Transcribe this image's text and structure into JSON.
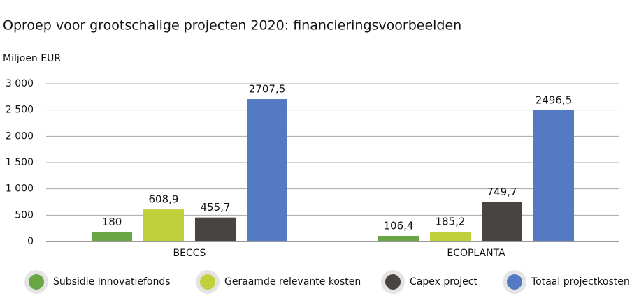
{
  "chart_data": {
    "type": "bar",
    "title": "Oproep voor grootschalige projecten 2020: financieringsvoorbeelden",
    "y_label": "Miljoen EUR",
    "categories": [
      "BECCS",
      "ECOPLANTA"
    ],
    "series": [
      {
        "name": "Subsidie Innovatiefonds",
        "color": "#6aa543",
        "values": [
          180,
          106.4
        ],
        "value_labels": [
          "180",
          "106,4"
        ]
      },
      {
        "name": "Geraamde relevante kosten",
        "color": "#c0d03a",
        "values": [
          608.9,
          185.2
        ],
        "value_labels": [
          "608,9",
          "185,2"
        ]
      },
      {
        "name": "Capex project",
        "color": "#484441",
        "values": [
          455.7,
          749.7
        ],
        "value_labels": [
          "455,7",
          "749,7"
        ]
      },
      {
        "name": "Totaal projectkosten",
        "color": "#547ac3",
        "values": [
          2707.5,
          2496.5
        ],
        "value_labels": [
          "2707,5",
          "2496,5"
        ]
      }
    ],
    "ylim": [
      0,
      3000
    ],
    "yticks": [
      0,
      500,
      {
        "value": 1000,
        "label": "1 000"
      },
      {
        "value": 1500,
        "label": "1 500"
      },
      {
        "value": 2000,
        "label": "2 000"
      },
      {
        "value": 2500,
        "label": "2 500"
      },
      {
        "value": 3000,
        "label": "3 000"
      }
    ],
    "grid": true
  }
}
